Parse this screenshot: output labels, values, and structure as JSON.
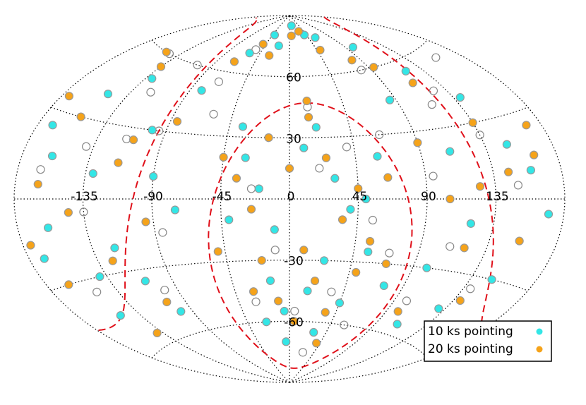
{
  "chart_data": {
    "type": "scatter",
    "projection": "aitoff",
    "xlim": [
      -180,
      180
    ],
    "ylim": [
      -90,
      90
    ],
    "xticks": [
      -135,
      -90,
      -45,
      0,
      45,
      90,
      135
    ],
    "yticks": [
      -60,
      -30,
      0,
      30,
      60
    ],
    "grid": true,
    "legend": "lower right",
    "series": [
      {
        "color": "#888888",
        "x": [
          -150,
          -140,
          -120,
          -105,
          -95,
          -85,
          -70,
          -55,
          -25,
          -10,
          5,
          20,
          35,
          55,
          65,
          80,
          95,
          110,
          125,
          140,
          160,
          -165,
          -135,
          -115,
          -60,
          -30,
          15,
          40,
          60,
          100,
          135,
          150,
          -145,
          -100,
          25,
          -15,
          70,
          115
        ],
        "y": [
          -35,
          20,
          45,
          60,
          30,
          -15,
          55,
          72,
          5,
          -25,
          -55,
          15,
          -45,
          -10,
          30,
          60,
          10,
          -20,
          45,
          -35,
          55,
          10,
          -5,
          25,
          40,
          -50,
          45,
          25,
          -60,
          -45,
          25,
          5,
          60,
          -40,
          -75,
          30,
          -25,
          40
        ]
      },
      {
        "name": "10 ks pointing",
        "color": "#33e6e6",
        "x": [
          -170,
          -160,
          -150,
          -130,
          -120,
          -110,
          -100,
          -140,
          -160,
          -170,
          -60,
          -40,
          -20,
          10,
          40,
          60,
          100,
          120,
          140,
          150,
          160,
          170,
          150,
          130,
          110,
          -30,
          -20,
          -10,
          10,
          20,
          30,
          40,
          50,
          25,
          15,
          -15,
          -25,
          -5,
          30,
          45,
          55,
          -40,
          -35,
          60,
          75,
          -80,
          -100,
          -90,
          -75,
          110,
          120,
          100,
          85,
          -130,
          -150,
          -5
        ],
        "y": [
          25,
          15,
          40,
          10,
          -20,
          -35,
          -50,
          -30,
          -10,
          -20,
          70,
          80,
          75,
          85,
          80,
          78,
          70,
          55,
          40,
          20,
          10,
          -5,
          -30,
          -45,
          -55,
          20,
          5,
          -15,
          25,
          35,
          10,
          -5,
          0,
          -30,
          -45,
          -40,
          -60,
          -70,
          -65,
          -50,
          -25,
          -10,
          35,
          20,
          -40,
          50,
          30,
          10,
          -5,
          20,
          -10,
          -30,
          45,
          50,
          -45,
          -55
        ]
      },
      {
        "name": "20 ks pointing",
        "color": "#f5a31a",
        "x": [
          -175,
          -165,
          -155,
          -145,
          -135,
          -125,
          -115,
          -105,
          -150,
          -165,
          -140,
          -70,
          -50,
          -30,
          5,
          30,
          50,
          80,
          95,
          115,
          135,
          145,
          165,
          155,
          140,
          120,
          100,
          -35,
          -25,
          -15,
          0,
          15,
          25,
          35,
          45,
          55,
          20,
          10,
          -10,
          -20,
          -30,
          5,
          35,
          50,
          65,
          70,
          -45,
          -50,
          -85,
          -110,
          -95,
          90,
          105,
          125,
          170,
          -175,
          40,
          15
        ],
        "y": [
          35,
          5,
          30,
          -5,
          55,
          -25,
          15,
          -45,
          60,
          -30,
          -55,
          65,
          75,
          70,
          80,
          82,
          72,
          65,
          60,
          50,
          30,
          10,
          15,
          -15,
          -40,
          -20,
          -50,
          10,
          -5,
          30,
          15,
          40,
          20,
          -10,
          5,
          -20,
          -40,
          -25,
          -50,
          -30,
          -45,
          -60,
          -55,
          -35,
          10,
          -30,
          20,
          -25,
          35,
          25,
          -10,
          25,
          0,
          5,
          25,
          -15,
          -70,
          48
        ]
      }
    ]
  }
}
